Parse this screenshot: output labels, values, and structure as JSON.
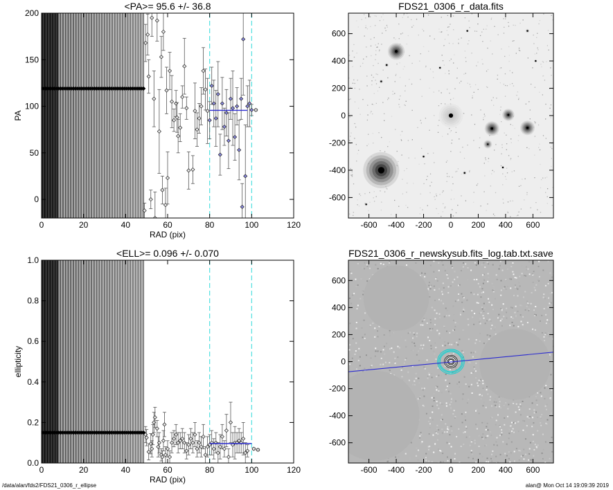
{
  "footer": {
    "path": "/data/alan/fds2/FDS21_0306_r_ellipse",
    "stamp": "alan@  Mon Oct 14 19:09:39 2019"
  },
  "chart_data": [
    {
      "id": "pa",
      "type": "scatter",
      "title": "<PA>=  95.6 +/-  36.8",
      "xlabel": "RAD (pix)",
      "ylabel": "PA",
      "xlim": [
        0,
        120
      ],
      "ylim": [
        -20,
        200
      ],
      "xticks": [
        0,
        20,
        40,
        60,
        80,
        100,
        120
      ],
      "yticks": [
        0,
        50,
        100,
        150,
        200
      ],
      "dense_isophote_region": [
        0,
        49
      ],
      "dense_marker_value": 119,
      "reference_lines_x": [
        80,
        100
      ],
      "mean_line": {
        "x": [
          80,
          98
        ],
        "y": 95.6
      },
      "points": [
        {
          "x": 49,
          "y": -12,
          "e": 8
        },
        {
          "x": 49.5,
          "y": 168,
          "e": 20
        },
        {
          "x": 50.5,
          "y": 177,
          "e": 22
        },
        {
          "x": 51,
          "y": 132,
          "e": 18
        },
        {
          "x": 52,
          "y": 0,
          "e": 10
        },
        {
          "x": 52.5,
          "y": 195,
          "e": 20
        },
        {
          "x": 53.5,
          "y": 108,
          "e": 30
        },
        {
          "x": 54,
          "y": -20,
          "e": 28
        },
        {
          "x": 55,
          "y": 192,
          "e": 22
        },
        {
          "x": 56,
          "y": 73,
          "e": 45
        },
        {
          "x": 57,
          "y": 153,
          "e": 22
        },
        {
          "x": 57.5,
          "y": 10,
          "e": 15
        },
        {
          "x": 58,
          "y": 180,
          "e": 20
        },
        {
          "x": 59,
          "y": -6,
          "e": 18
        },
        {
          "x": 59.5,
          "y": 117,
          "e": 25
        },
        {
          "x": 60,
          "y": 23,
          "e": 28
        },
        {
          "x": 61,
          "y": 138,
          "e": 20
        },
        {
          "x": 62,
          "y": 105,
          "e": 28
        },
        {
          "x": 63,
          "y": 85,
          "e": 12
        },
        {
          "x": 64,
          "y": 103,
          "e": 14
        },
        {
          "x": 64.5,
          "y": 88,
          "e": 16
        },
        {
          "x": 65,
          "y": 68,
          "e": 18
        },
        {
          "x": 66,
          "y": 77,
          "e": 15
        },
        {
          "x": 67,
          "y": 110,
          "e": 12
        },
        {
          "x": 68,
          "y": 143,
          "e": 30
        },
        {
          "x": 69,
          "y": 98,
          "e": 12
        },
        {
          "x": 70,
          "y": 31,
          "e": 20
        },
        {
          "x": 72,
          "y": 32,
          "e": 15
        },
        {
          "x": 73,
          "y": 95,
          "e": 30
        },
        {
          "x": 74,
          "y": 75,
          "e": 18
        },
        {
          "x": 75,
          "y": 87,
          "e": 16
        },
        {
          "x": 76,
          "y": 100,
          "e": 20
        },
        {
          "x": 77,
          "y": 138,
          "e": 25
        },
        {
          "x": 78,
          "y": 118,
          "e": 22
        },
        {
          "x": 79,
          "y": 95,
          "e": 35
        },
        {
          "x": 80,
          "y": 85,
          "e": 20
        },
        {
          "x": 81,
          "y": 122,
          "e": 20
        },
        {
          "x": 82,
          "y": 103,
          "e": 25
        },
        {
          "x": 83,
          "y": 87,
          "e": 30
        },
        {
          "x": 84,
          "y": 113,
          "e": 35
        },
        {
          "x": 85,
          "y": 48,
          "e": 22
        },
        {
          "x": 86,
          "y": 103,
          "e": 28
        },
        {
          "x": 87,
          "y": 78,
          "e": 20
        },
        {
          "x": 88,
          "y": 93,
          "e": 25
        },
        {
          "x": 89,
          "y": 63,
          "e": 30
        },
        {
          "x": 90,
          "y": 108,
          "e": 22
        },
        {
          "x": 91,
          "y": 98,
          "e": 40
        },
        {
          "x": 92,
          "y": 67,
          "e": 25
        },
        {
          "x": 93,
          "y": 100,
          "e": 20
        },
        {
          "x": 94,
          "y": 53,
          "e": 32
        },
        {
          "x": 95,
          "y": 108,
          "e": 22
        },
        {
          "x": 95.5,
          "y": -8,
          "e": 25
        },
        {
          "x": 96,
          "y": 172,
          "e": 60
        },
        {
          "x": 97,
          "y": 25,
          "e": 55
        },
        {
          "x": 98,
          "y": 100,
          "e": 22
        },
        {
          "x": 99,
          "y": 103,
          "e": 25
        },
        {
          "x": 100,
          "y": 96,
          "e": 6
        },
        {
          "x": 102,
          "y": 96,
          "e": 1
        }
      ]
    },
    {
      "id": "ell",
      "type": "scatter",
      "title": "<ELL>= 0.096 +/-  0.070",
      "xlabel": "RAD (pix)",
      "ylabel": "ellipticity",
      "xlim": [
        0,
        120
      ],
      "ylim": [
        0,
        1
      ],
      "xticks": [
        0,
        20,
        40,
        60,
        80,
        100,
        120
      ],
      "yticks": [
        0.0,
        0.2,
        0.4,
        0.6,
        0.8,
        1.0
      ],
      "dense_isophote_region": [
        0,
        49
      ],
      "dense_marker_value": 0.15,
      "reference_lines_x": [
        80,
        100
      ],
      "mean_line": {
        "x": [
          80,
          100
        ],
        "y": 0.096
      },
      "points": [
        {
          "x": 49.5,
          "y": 0.14,
          "e": 0.04
        },
        {
          "x": 50,
          "y": 0.125,
          "e": 0.04
        },
        {
          "x": 51,
          "y": 0.055,
          "e": 0.04
        },
        {
          "x": 52,
          "y": 0.095,
          "e": 0.05
        },
        {
          "x": 52.5,
          "y": 0.07,
          "e": 0.04
        },
        {
          "x": 53,
          "y": 0.14,
          "e": 0.05
        },
        {
          "x": 53.5,
          "y": 0.2,
          "e": 0.05
        },
        {
          "x": 54,
          "y": 0.225,
          "e": 0.05
        },
        {
          "x": 55,
          "y": 0.17,
          "e": 0.04
        },
        {
          "x": 55.5,
          "y": 0.08,
          "e": 0.05
        },
        {
          "x": 56,
          "y": 0.1,
          "e": 0.05
        },
        {
          "x": 57,
          "y": 0.04,
          "e": 0.03
        },
        {
          "x": 57.5,
          "y": 0.03,
          "e": 0.03
        },
        {
          "x": 58,
          "y": 0.11,
          "e": 0.05
        },
        {
          "x": 58.5,
          "y": 0.19,
          "e": 0.06
        },
        {
          "x": 59,
          "y": 0.04,
          "e": 0.04
        },
        {
          "x": 60,
          "y": 0.07,
          "e": 0.04
        },
        {
          "x": 61,
          "y": 0.03,
          "e": 0.03
        },
        {
          "x": 62,
          "y": 0.1,
          "e": 0.05
        },
        {
          "x": 63,
          "y": 0.12,
          "e": 0.04
        },
        {
          "x": 64,
          "y": 0.14,
          "e": 0.05
        },
        {
          "x": 65,
          "y": 0.1,
          "e": 0.05
        },
        {
          "x": 66,
          "y": 0.11,
          "e": 0.04
        },
        {
          "x": 67,
          "y": 0.12,
          "e": 0.05
        },
        {
          "x": 68,
          "y": 0.1,
          "e": 0.05
        },
        {
          "x": 69,
          "y": 0.06,
          "e": 0.04
        },
        {
          "x": 70,
          "y": 0.09,
          "e": 0.05
        },
        {
          "x": 71,
          "y": 0.12,
          "e": 0.05
        },
        {
          "x": 72,
          "y": 0.1,
          "e": 0.05
        },
        {
          "x": 73,
          "y": 0.14,
          "e": 0.06
        },
        {
          "x": 74,
          "y": 0.07,
          "e": 0.04
        },
        {
          "x": 75,
          "y": 0.1,
          "e": 0.05
        },
        {
          "x": 76,
          "y": 0.08,
          "e": 0.05
        },
        {
          "x": 77,
          "y": 0.13,
          "e": 0.06
        },
        {
          "x": 78,
          "y": 0.04,
          "e": 0.04
        },
        {
          "x": 79,
          "y": 0.08,
          "e": 0.05
        },
        {
          "x": 80,
          "y": 0.09,
          "e": 0.05
        },
        {
          "x": 81,
          "y": 0.1,
          "e": 0.06
        },
        {
          "x": 82,
          "y": 0.07,
          "e": 0.05
        },
        {
          "x": 83,
          "y": 0.1,
          "e": 0.05
        },
        {
          "x": 84,
          "y": 0.05,
          "e": 0.05
        },
        {
          "x": 85,
          "y": 0.08,
          "e": 0.06
        },
        {
          "x": 86,
          "y": 0.13,
          "e": 0.06
        },
        {
          "x": 87,
          "y": 0.07,
          "e": 0.04
        },
        {
          "x": 88,
          "y": 0.16,
          "e": 0.08
        },
        {
          "x": 89,
          "y": 0.03,
          "e": 0.04
        },
        {
          "x": 90,
          "y": 0.2,
          "e": 0.1
        },
        {
          "x": 91,
          "y": 0.09,
          "e": 0.06
        },
        {
          "x": 92,
          "y": 0.1,
          "e": 0.08
        },
        {
          "x": 93,
          "y": 0.1,
          "e": 0.05
        },
        {
          "x": 94,
          "y": 0.11,
          "e": 0.06
        },
        {
          "x": 95,
          "y": 0.1,
          "e": 0.05
        },
        {
          "x": 96,
          "y": 0.12,
          "e": 0.08
        },
        {
          "x": 97,
          "y": 0.05,
          "e": 0.05
        },
        {
          "x": 98,
          "y": 0.06,
          "e": 0.03
        },
        {
          "x": 101,
          "y": 0.07,
          "e": 0.005
        },
        {
          "x": 103,
          "y": 0.065,
          "e": 0.005
        }
      ]
    },
    {
      "id": "data-image",
      "type": "image",
      "title": "FDS21_0306_r_data.fits",
      "xlim": [
        -750,
        750
      ],
      "ylim": [
        -750,
        750
      ],
      "xticks": [
        -600,
        -400,
        -200,
        0,
        200,
        400,
        600
      ],
      "yticks": [
        -600,
        -400,
        -200,
        0,
        200,
        400,
        600
      ],
      "sources": [
        {
          "x": -400,
          "y": 470,
          "size": 28,
          "peak": 0.95
        },
        {
          "x": -510,
          "y": -400,
          "size": 60,
          "peak": 1.0
        },
        {
          "x": 300,
          "y": -95,
          "size": 24,
          "peak": 0.95
        },
        {
          "x": 420,
          "y": 5,
          "size": 20,
          "peak": 0.9
        },
        {
          "x": 560,
          "y": -90,
          "size": 24,
          "peak": 0.95
        },
        {
          "x": 270,
          "y": -210,
          "size": 14,
          "peak": 0.7
        },
        {
          "x": 0,
          "y": 0,
          "size": 40,
          "peak": 0.2
        },
        {
          "x": -510,
          "y": 250,
          "size": 6,
          "peak": 0.5
        },
        {
          "x": -470,
          "y": 370,
          "size": 6,
          "peak": 0.6
        },
        {
          "x": -80,
          "y": 350,
          "size": 5,
          "peak": 0.6
        },
        {
          "x": 560,
          "y": 620,
          "size": 6,
          "peak": 0.6
        },
        {
          "x": 120,
          "y": 620,
          "size": 5,
          "peak": 0.5
        },
        {
          "x": -200,
          "y": -300,
          "size": 5,
          "peak": 0.5
        },
        {
          "x": 100,
          "y": -420,
          "size": 6,
          "peak": 0.5
        },
        {
          "x": 380,
          "y": -380,
          "size": 5,
          "peak": 0.5
        },
        {
          "x": -620,
          "y": -650,
          "size": 5,
          "peak": 0.5
        },
        {
          "x": 620,
          "y": 400,
          "size": 5,
          "peak": 0.5
        }
      ]
    },
    {
      "id": "mask-image",
      "type": "image",
      "title": "FDS21_0306_r_newskysub.fits_log.tab.txt.save",
      "xlim": [
        -750,
        750
      ],
      "ylim": [
        -750,
        750
      ],
      "xticks": [
        -600,
        -400,
        -200,
        0,
        200,
        400,
        600
      ],
      "yticks": [
        -600,
        -400,
        -200,
        0,
        200,
        400,
        600
      ],
      "masks": [
        {
          "x": -400,
          "y": 470,
          "r": 240
        },
        {
          "x": -560,
          "y": -400,
          "r": 330
        },
        {
          "x": 470,
          "y": -20,
          "r": 260
        }
      ],
      "fit_line": {
        "x": [
          -750,
          750
        ],
        "y": [
          -75,
          70
        ]
      },
      "isophotes": [
        {
          "a": 18,
          "b": 16,
          "color": "#111111"
        },
        {
          "a": 26,
          "b": 23,
          "color": "#111111"
        },
        {
          "a": 38,
          "b": 35,
          "color": "#111111"
        },
        {
          "a": 48,
          "b": 45,
          "color": "#111111"
        },
        {
          "a": 80,
          "b": 73,
          "color": "#00d4d4"
        },
        {
          "a": 88,
          "b": 80,
          "color": "#00d4d4"
        },
        {
          "a": 98,
          "b": 90,
          "color": "#00d4d4"
        }
      ]
    }
  ]
}
